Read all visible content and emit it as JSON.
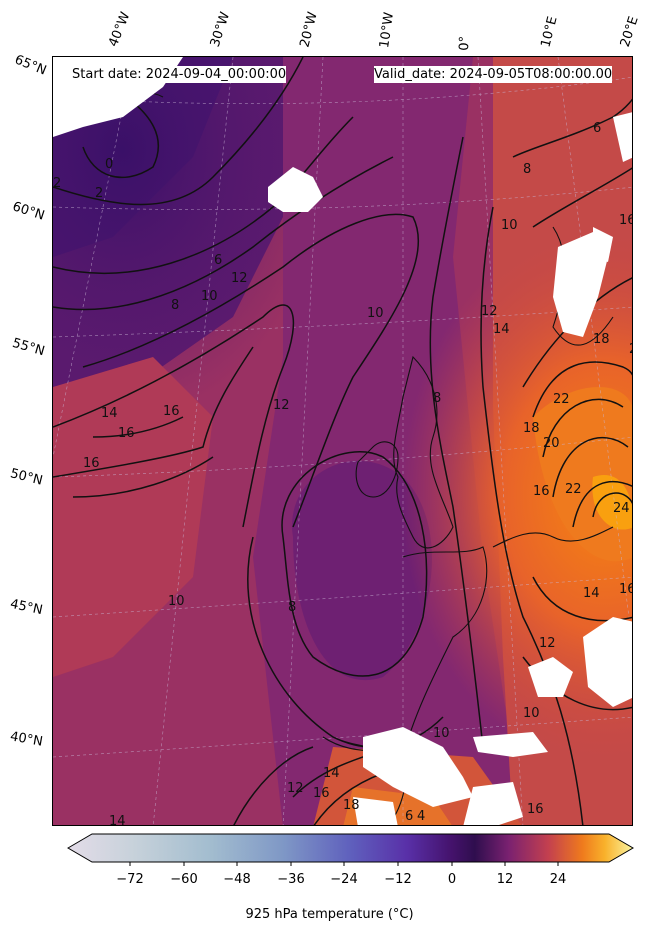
{
  "header": {
    "start_date": "Start date: 2024-09-04_00:00:00",
    "valid_date": "Valid_date: 2024-09-05T08:00:00.00"
  },
  "longitude_labels": [
    "40°W",
    "30°W",
    "20°W",
    "10°W",
    "0°",
    "10°E",
    "20°E"
  ],
  "latitude_labels": [
    "65°N",
    "60°N",
    "55°N",
    "50°N",
    "45°N",
    "40°N"
  ],
  "contour_labels": [
    "0",
    "2",
    "2",
    "6",
    "8",
    "10",
    "12",
    "14",
    "16",
    "16",
    "16",
    "12",
    "10",
    "8",
    "6",
    "8",
    "10",
    "12",
    "14",
    "16",
    "18",
    "20",
    "20",
    "22",
    "24",
    "22",
    "18",
    "16",
    "14",
    "12",
    "10",
    "10",
    "12",
    "14",
    "16",
    "18",
    "16",
    "14",
    "16",
    "8",
    "6",
    "4",
    "10"
  ],
  "colorbar": {
    "label": "925 hPa temperature ($^\\circ$C)",
    "label_display": "925 hPa temperature (°C)",
    "ticks": [
      "−72",
      "−60",
      "−48",
      "−36",
      "−24",
      "−12",
      "0",
      "12",
      "24"
    ],
    "tick_values": [
      -72,
      -60,
      -48,
      -36,
      -24,
      -12,
      0,
      12,
      24
    ],
    "range": [
      -84,
      36
    ],
    "colormap": "inferno",
    "extend": "both"
  },
  "colors": {
    "cold_purple": "#3d1466",
    "mid_magenta": "#7a2470",
    "warm_red": "#c9404a",
    "hot_orange": "#f57d15",
    "hottest": "#fca50a"
  }
}
